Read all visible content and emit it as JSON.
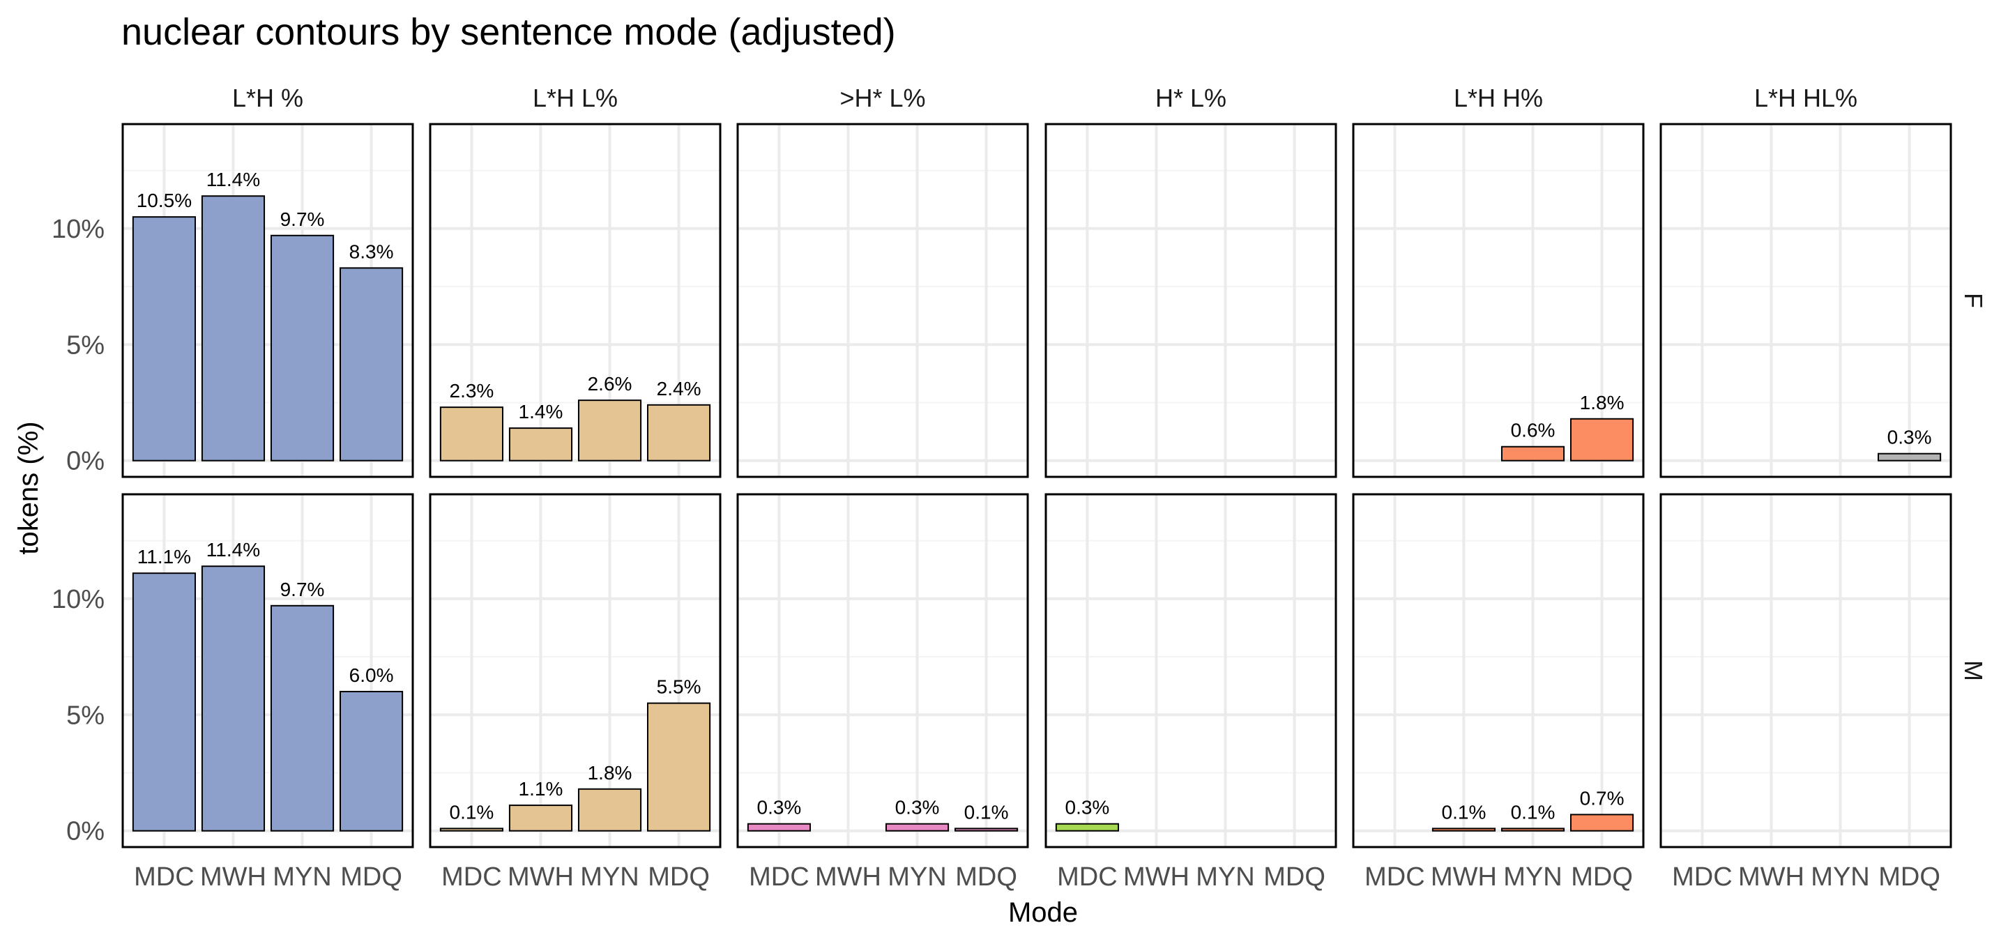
{
  "chart_data": {
    "type": "bar",
    "title": "nuclear contours by sentence mode (adjusted)",
    "xlabel": "Mode",
    "ylabel": "tokens (%)",
    "categories": [
      "MDC",
      "MWH",
      "MYN",
      "MDQ"
    ],
    "y_ticks": [
      "0%",
      "5%",
      "10%"
    ],
    "y_tick_values": [
      0,
      5,
      10
    ],
    "ylim": [
      -0.7,
      14.5
    ],
    "grid": true,
    "facet_columns": [
      "L*H %",
      "L*H L%",
      ">H* L%",
      "H* L%",
      "L*H H%",
      "L*H HL%"
    ],
    "facet_rows": [
      "F",
      "M"
    ],
    "facet_colors": [
      "#8DA0CB",
      "#E5C494",
      "#E78AC3",
      "#A6D854",
      "#FC8D62",
      "#B3B3B3"
    ],
    "panels": [
      {
        "row": "F",
        "column": "L*H %",
        "values": [
          10.5,
          11.4,
          9.7,
          8.3
        ],
        "labels": [
          "10.5%",
          "11.4%",
          "9.7%",
          "8.3%"
        ]
      },
      {
        "row": "F",
        "column": "L*H L%",
        "values": [
          2.3,
          1.4,
          2.6,
          2.4
        ],
        "labels": [
          "2.3%",
          "1.4%",
          "2.6%",
          "2.4%"
        ]
      },
      {
        "row": "F",
        "column": ">H* L%",
        "values": [
          null,
          null,
          null,
          null
        ],
        "labels": [
          "",
          "",
          "",
          ""
        ]
      },
      {
        "row": "F",
        "column": "H* L%",
        "values": [
          null,
          null,
          null,
          null
        ],
        "labels": [
          "",
          "",
          "",
          ""
        ]
      },
      {
        "row": "F",
        "column": "L*H H%",
        "values": [
          null,
          null,
          0.6,
          1.8
        ],
        "labels": [
          "",
          "",
          "0.6%",
          "1.8%"
        ]
      },
      {
        "row": "F",
        "column": "L*H HL%",
        "values": [
          null,
          null,
          null,
          0.3
        ],
        "labels": [
          "",
          "",
          "",
          "0.3%"
        ]
      },
      {
        "row": "M",
        "column": "L*H %",
        "values": [
          11.1,
          11.4,
          9.7,
          6.0
        ],
        "labels": [
          "11.1%",
          "11.4%",
          "9.7%",
          "6.0%"
        ]
      },
      {
        "row": "M",
        "column": "L*H L%",
        "values": [
          0.1,
          1.1,
          1.8,
          5.5
        ],
        "labels": [
          "0.1%",
          "1.1%",
          "1.8%",
          "5.5%"
        ]
      },
      {
        "row": "M",
        "column": ">H* L%",
        "values": [
          0.3,
          null,
          0.3,
          0.1
        ],
        "labels": [
          "0.3%",
          "",
          "0.3%",
          "0.1%"
        ]
      },
      {
        "row": "M",
        "column": "H* L%",
        "values": [
          0.3,
          null,
          null,
          null
        ],
        "labels": [
          "0.3%",
          "",
          "",
          ""
        ]
      },
      {
        "row": "M",
        "column": "L*H H%",
        "values": [
          null,
          0.1,
          0.1,
          0.7
        ],
        "labels": [
          "",
          "0.1%",
          "0.1%",
          "0.7%"
        ]
      },
      {
        "row": "M",
        "column": "L*H HL%",
        "values": [
          null,
          null,
          null,
          null
        ],
        "labels": [
          "",
          "",
          "",
          ""
        ]
      }
    ]
  }
}
